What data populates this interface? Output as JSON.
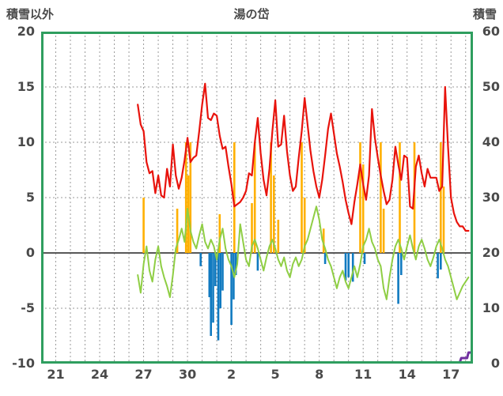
{
  "chart_data": {
    "type": "line",
    "title": "湯の岱",
    "left_axis": {
      "label": "積雪以外",
      "min": -10,
      "max": 20,
      "ticks": [
        20,
        15,
        10,
        5,
        0,
        -5,
        -10
      ],
      "gridline_values": [
        15,
        10,
        5,
        -5
      ],
      "zero_line": 0
    },
    "right_axis": {
      "label": "積雪",
      "min": 0,
      "max": 60,
      "ticks": [
        60,
        50,
        40,
        30,
        20,
        10,
        0
      ]
    },
    "x_axis": {
      "min": 0,
      "max": 29.5,
      "gridline_step": 1,
      "tick_positions": [
        1,
        4,
        7,
        10,
        13,
        16,
        19,
        22,
        25,
        28
      ],
      "tick_labels": [
        "21",
        "24",
        "27",
        "30",
        "2",
        "5",
        "8",
        "11",
        "14",
        "17"
      ]
    },
    "colors": {
      "frame": "#2f9e5f",
      "grid": "#9b9b9b",
      "zero_line": "#595959",
      "label": "#4a4a4a"
    },
    "series": [
      {
        "name": "precipitation-bars",
        "type": "bar",
        "axis": "left",
        "color": "#ffb000",
        "bar_width": 2.6,
        "points": [
          [
            7.0,
            5
          ],
          [
            9.3,
            4
          ],
          [
            9.9,
            10
          ],
          [
            10.05,
            7
          ],
          [
            10.2,
            10
          ],
          [
            12.2,
            3.5
          ],
          [
            13.2,
            10
          ],
          [
            14.4,
            4.5
          ],
          [
            14.6,
            10
          ],
          [
            15.7,
            10
          ],
          [
            15.9,
            7
          ],
          [
            16.2,
            3
          ],
          [
            17.8,
            10
          ],
          [
            18.0,
            5
          ],
          [
            19.3,
            2.2
          ],
          [
            21.8,
            10
          ],
          [
            22.0,
            8
          ],
          [
            23.2,
            10
          ],
          [
            23.4,
            4
          ],
          [
            24.5,
            10
          ],
          [
            25.5,
            10
          ],
          [
            27.3,
            10
          ],
          [
            27.5,
            6
          ]
        ]
      },
      {
        "name": "negative-bars",
        "type": "bar",
        "axis": "left",
        "color": "#107ac0",
        "bar_width": 2.6,
        "points": [
          [
            10.9,
            -1.2
          ],
          [
            11.5,
            -4.0
          ],
          [
            11.6,
            -7.5
          ],
          [
            11.75,
            -6.3
          ],
          [
            11.9,
            -3.0
          ],
          [
            12.1,
            -7.9
          ],
          [
            12.25,
            -5.0
          ],
          [
            12.4,
            -3.4
          ],
          [
            13.0,
            -6.5
          ],
          [
            13.15,
            -4.2
          ],
          [
            13.3,
            -2.0
          ],
          [
            14.8,
            -1.6
          ],
          [
            19.4,
            -1.0
          ],
          [
            20.8,
            -2.5
          ],
          [
            21.0,
            -2.2
          ],
          [
            21.3,
            -2.6
          ],
          [
            22.1,
            -1.0
          ],
          [
            24.4,
            -4.6
          ],
          [
            24.6,
            -2.0
          ],
          [
            27.1,
            -2.3
          ],
          [
            27.3,
            -1.5
          ]
        ]
      },
      {
        "name": "green-line",
        "type": "line",
        "axis": "left",
        "color": "#8fce44",
        "width": 2,
        "points": [
          [
            6.6,
            -2.0
          ],
          [
            6.8,
            -3.6
          ],
          [
            7.0,
            -1.0
          ],
          [
            7.2,
            0.6
          ],
          [
            7.4,
            -1.6
          ],
          [
            7.6,
            -2.6
          ],
          [
            7.8,
            -0.6
          ],
          [
            8.0,
            0.6
          ],
          [
            8.2,
            -1.2
          ],
          [
            8.4,
            -2.2
          ],
          [
            8.6,
            -3.0
          ],
          [
            8.8,
            -4.0
          ],
          [
            9.0,
            -2.0
          ],
          [
            9.2,
            0.4
          ],
          [
            9.4,
            1.2
          ],
          [
            9.6,
            2.2
          ],
          [
            9.8,
            1.0
          ],
          [
            10.0,
            4.0
          ],
          [
            10.2,
            2.0
          ],
          [
            10.4,
            1.0
          ],
          [
            10.6,
            0.4
          ],
          [
            10.8,
            1.6
          ],
          [
            11.0,
            2.6
          ],
          [
            11.2,
            1.0
          ],
          [
            11.4,
            0.4
          ],
          [
            11.6,
            1.2
          ],
          [
            11.8,
            0.6
          ],
          [
            12.0,
            -0.6
          ],
          [
            12.2,
            1.2
          ],
          [
            12.4,
            2.2
          ],
          [
            12.6,
            0.4
          ],
          [
            12.8,
            -0.6
          ],
          [
            13.0,
            -1.2
          ],
          [
            13.2,
            -2.2
          ],
          [
            13.4,
            -1.0
          ],
          [
            13.6,
            2.6
          ],
          [
            13.8,
            1.0
          ],
          [
            14.0,
            -0.6
          ],
          [
            14.2,
            -1.2
          ],
          [
            14.4,
            0.6
          ],
          [
            14.6,
            1.2
          ],
          [
            14.8,
            0.4
          ],
          [
            15.0,
            -0.6
          ],
          [
            15.2,
            -1.6
          ],
          [
            15.4,
            -0.4
          ],
          [
            15.6,
            0.6
          ],
          [
            15.8,
            1.2
          ],
          [
            16.0,
            0.4
          ],
          [
            16.2,
            -0.6
          ],
          [
            16.4,
            -1.2
          ],
          [
            16.6,
            -0.4
          ],
          [
            16.8,
            -1.6
          ],
          [
            17.0,
            -2.2
          ],
          [
            17.2,
            -1.0
          ],
          [
            17.4,
            -0.4
          ],
          [
            17.6,
            -1.2
          ],
          [
            17.8,
            -0.6
          ],
          [
            18.0,
            0.6
          ],
          [
            18.2,
            1.2
          ],
          [
            18.4,
            2.2
          ],
          [
            18.6,
            3.2
          ],
          [
            18.8,
            4.2
          ],
          [
            19.0,
            3.0
          ],
          [
            19.2,
            1.2
          ],
          [
            19.4,
            0.4
          ],
          [
            19.6,
            -0.6
          ],
          [
            19.8,
            -1.2
          ],
          [
            20.0,
            -2.2
          ],
          [
            20.2,
            -3.2
          ],
          [
            20.4,
            -2.2
          ],
          [
            20.6,
            -1.6
          ],
          [
            20.8,
            -2.6
          ],
          [
            21.0,
            -3.2
          ],
          [
            21.2,
            -2.2
          ],
          [
            21.4,
            -1.2
          ],
          [
            21.6,
            -2.2
          ],
          [
            21.8,
            -1.0
          ],
          [
            22.0,
            0.6
          ],
          [
            22.2,
            1.2
          ],
          [
            22.4,
            2.2
          ],
          [
            22.6,
            1.0
          ],
          [
            22.8,
            0.4
          ],
          [
            23.0,
            -0.6
          ],
          [
            23.2,
            -1.2
          ],
          [
            23.4,
            -3.2
          ],
          [
            23.6,
            -4.2
          ],
          [
            23.8,
            -2.2
          ],
          [
            24.0,
            -0.6
          ],
          [
            24.2,
            0.6
          ],
          [
            24.4,
            1.2
          ],
          [
            24.6,
            0.4
          ],
          [
            24.8,
            -0.6
          ],
          [
            25.0,
            0.6
          ],
          [
            25.2,
            1.6
          ],
          [
            25.4,
            0.4
          ],
          [
            25.6,
            -0.6
          ],
          [
            25.8,
            0.6
          ],
          [
            26.0,
            1.2
          ],
          [
            26.2,
            0.4
          ],
          [
            26.4,
            -0.6
          ],
          [
            26.6,
            -1.2
          ],
          [
            26.8,
            -0.4
          ],
          [
            27.0,
            0.6
          ],
          [
            27.2,
            1.2
          ],
          [
            27.4,
            0.4
          ],
          [
            27.6,
            -0.6
          ],
          [
            27.8,
            -1.2
          ],
          [
            28.0,
            -2.2
          ],
          [
            28.2,
            -3.2
          ],
          [
            28.4,
            -4.2
          ],
          [
            28.6,
            -3.6
          ],
          [
            28.8,
            -3.0
          ],
          [
            29.0,
            -2.6
          ],
          [
            29.2,
            -2.2
          ]
        ]
      },
      {
        "name": "temperature-line",
        "type": "line",
        "axis": "left",
        "color": "#e8130c",
        "width": 2.2,
        "points": [
          [
            6.6,
            13.4
          ],
          [
            6.8,
            11.6
          ],
          [
            7.0,
            11.0
          ],
          [
            7.2,
            8.2
          ],
          [
            7.4,
            7.2
          ],
          [
            7.6,
            7.4
          ],
          [
            7.8,
            5.4
          ],
          [
            8.0,
            7.0
          ],
          [
            8.2,
            5.2
          ],
          [
            8.4,
            5.0
          ],
          [
            8.6,
            7.6
          ],
          [
            8.8,
            6.0
          ],
          [
            9.0,
            9.8
          ],
          [
            9.2,
            7.0
          ],
          [
            9.4,
            5.8
          ],
          [
            9.6,
            6.8
          ],
          [
            9.8,
            8.4
          ],
          [
            10.0,
            10.4
          ],
          [
            10.2,
            8.2
          ],
          [
            10.4,
            8.6
          ],
          [
            10.6,
            8.8
          ],
          [
            10.8,
            11.0
          ],
          [
            11.0,
            13.4
          ],
          [
            11.2,
            15.3
          ],
          [
            11.4,
            12.2
          ],
          [
            11.6,
            12.0
          ],
          [
            11.8,
            12.6
          ],
          [
            12.0,
            12.4
          ],
          [
            12.2,
            10.6
          ],
          [
            12.4,
            9.4
          ],
          [
            12.6,
            9.6
          ],
          [
            12.8,
            7.8
          ],
          [
            13.0,
            6.2
          ],
          [
            13.2,
            4.2
          ],
          [
            13.4,
            4.4
          ],
          [
            13.6,
            4.6
          ],
          [
            13.8,
            5.0
          ],
          [
            14.0,
            5.6
          ],
          [
            14.2,
            7.2
          ],
          [
            14.4,
            7.0
          ],
          [
            14.6,
            10.0
          ],
          [
            14.8,
            12.2
          ],
          [
            15.0,
            9.0
          ],
          [
            15.2,
            6.6
          ],
          [
            15.4,
            5.2
          ],
          [
            15.6,
            7.6
          ],
          [
            15.8,
            11.0
          ],
          [
            16.0,
            13.8
          ],
          [
            16.2,
            9.6
          ],
          [
            16.4,
            9.8
          ],
          [
            16.6,
            12.4
          ],
          [
            16.8,
            9.2
          ],
          [
            17.0,
            7.0
          ],
          [
            17.2,
            5.6
          ],
          [
            17.4,
            6.0
          ],
          [
            17.6,
            8.6
          ],
          [
            17.8,
            11.0
          ],
          [
            18.0,
            14.0
          ],
          [
            18.2,
            11.6
          ],
          [
            18.4,
            9.2
          ],
          [
            18.6,
            7.4
          ],
          [
            18.8,
            6.0
          ],
          [
            19.0,
            5.0
          ],
          [
            19.2,
            6.6
          ],
          [
            19.4,
            8.8
          ],
          [
            19.6,
            11.2
          ],
          [
            19.8,
            12.6
          ],
          [
            20.0,
            10.8
          ],
          [
            20.2,
            9.0
          ],
          [
            20.4,
            7.8
          ],
          [
            20.6,
            6.4
          ],
          [
            20.8,
            4.8
          ],
          [
            21.0,
            3.6
          ],
          [
            21.2,
            2.6
          ],
          [
            21.4,
            4.6
          ],
          [
            21.6,
            6.2
          ],
          [
            21.8,
            8.0
          ],
          [
            22.0,
            6.2
          ],
          [
            22.2,
            4.8
          ],
          [
            22.4,
            7.0
          ],
          [
            22.6,
            13.0
          ],
          [
            22.8,
            10.4
          ],
          [
            23.0,
            8.6
          ],
          [
            23.2,
            7.0
          ],
          [
            23.4,
            5.6
          ],
          [
            23.6,
            4.4
          ],
          [
            23.8,
            4.8
          ],
          [
            24.0,
            6.6
          ],
          [
            24.2,
            9.6
          ],
          [
            24.4,
            8.0
          ],
          [
            24.6,
            6.6
          ],
          [
            24.8,
            8.8
          ],
          [
            25.0,
            8.6
          ],
          [
            25.2,
            4.2
          ],
          [
            25.4,
            4.0
          ],
          [
            25.6,
            7.8
          ],
          [
            25.8,
            8.8
          ],
          [
            26.0,
            7.2
          ],
          [
            26.2,
            6.0
          ],
          [
            26.4,
            7.6
          ],
          [
            26.6,
            6.8
          ],
          [
            26.8,
            6.8
          ],
          [
            27.0,
            6.8
          ],
          [
            27.2,
            5.6
          ],
          [
            27.4,
            6.0
          ],
          [
            27.6,
            15.0
          ],
          [
            27.8,
            9.6
          ],
          [
            28.0,
            5.0
          ],
          [
            28.2,
            3.6
          ],
          [
            28.4,
            2.8
          ],
          [
            28.6,
            2.4
          ],
          [
            28.8,
            2.4
          ],
          [
            29.0,
            2.0
          ],
          [
            29.2,
            2.0
          ]
        ]
      },
      {
        "name": "snow-depth-line",
        "type": "line",
        "axis": "right",
        "color": "#7030a0",
        "width": 3,
        "points": [
          [
            6.6,
            0.2
          ],
          [
            28.6,
            0.2
          ],
          [
            28.7,
            1.0
          ],
          [
            29.1,
            1.0
          ],
          [
            29.2,
            2.0
          ],
          [
            29.45,
            2.0
          ]
        ]
      }
    ]
  }
}
